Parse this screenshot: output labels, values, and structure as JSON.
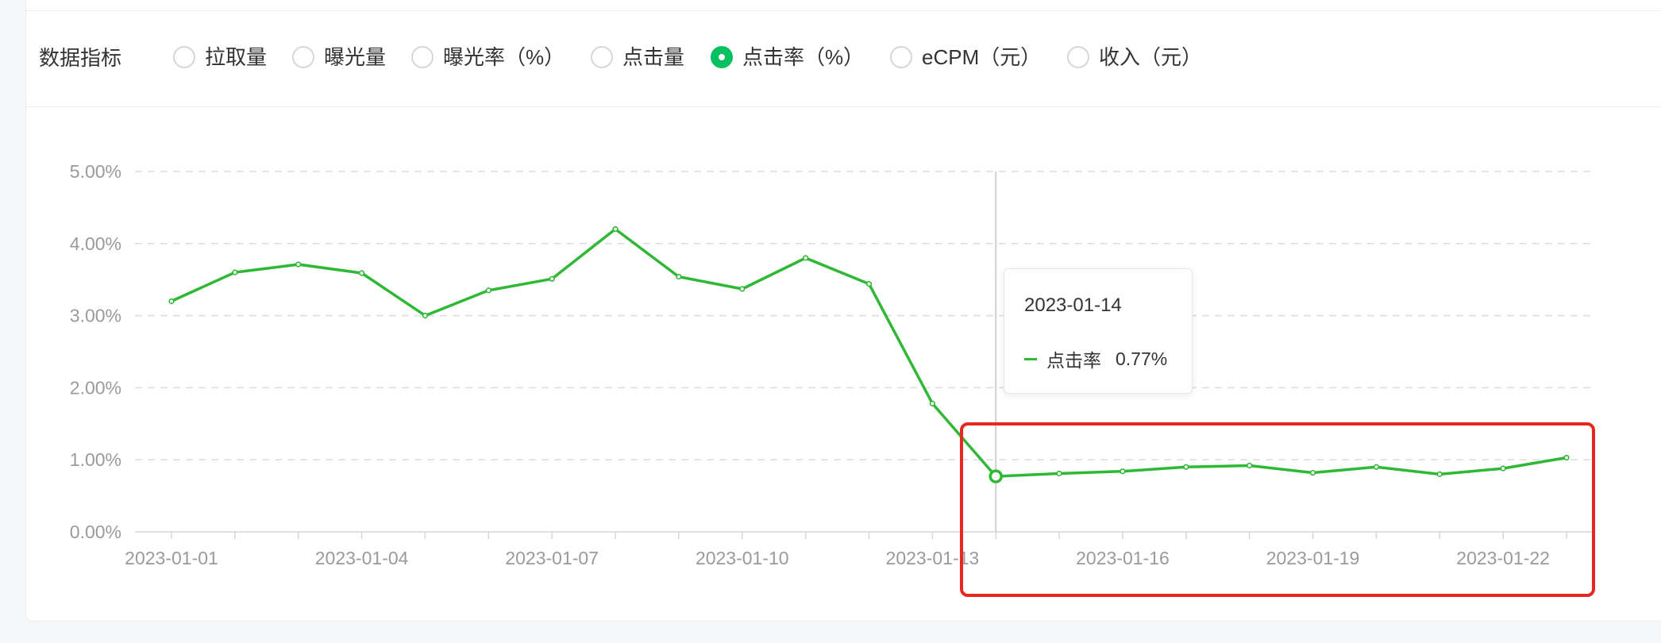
{
  "metrics": {
    "label": "数据指标",
    "options": [
      {
        "label": "拉取量",
        "checked": false
      },
      {
        "label": "曝光量",
        "checked": false
      },
      {
        "label": "曝光率（%）",
        "checked": false
      },
      {
        "label": "点击量",
        "checked": false
      },
      {
        "label": "点击率（%）",
        "checked": true
      },
      {
        "label": "eCPM（元）",
        "checked": false
      },
      {
        "label": "收入（元）",
        "checked": false
      }
    ]
  },
  "tooltip": {
    "date": "2023-01-14",
    "series_name": "点击率",
    "value": "0.77%"
  },
  "colors": {
    "accent": "#07c160",
    "line": "#2fb835",
    "highlight": "#e8281f"
  },
  "chart_data": {
    "type": "line",
    "x": [
      "2023-01-01",
      "2023-01-02",
      "2023-01-03",
      "2023-01-04",
      "2023-01-05",
      "2023-01-06",
      "2023-01-07",
      "2023-01-08",
      "2023-01-09",
      "2023-01-10",
      "2023-01-11",
      "2023-01-12",
      "2023-01-13",
      "2023-01-14",
      "2023-01-15",
      "2023-01-16",
      "2023-01-17",
      "2023-01-18",
      "2023-01-19",
      "2023-01-20",
      "2023-01-21",
      "2023-01-22",
      "2023-01-23"
    ],
    "x_tick_labels": [
      "2023-01-01",
      "2023-01-04",
      "2023-01-07",
      "2023-01-10",
      "2023-01-13",
      "2023-01-16",
      "2023-01-19",
      "2023-01-22"
    ],
    "series": [
      {
        "name": "点击率",
        "values": [
          3.2,
          3.6,
          3.71,
          3.59,
          3.0,
          3.35,
          3.51,
          4.2,
          3.54,
          3.37,
          3.8,
          3.44,
          1.78,
          0.77,
          0.81,
          0.84,
          0.9,
          0.92,
          0.82,
          0.9,
          0.8,
          0.88,
          1.03
        ]
      }
    ],
    "y_tick_labels": [
      "0.00%",
      "1.00%",
      "2.00%",
      "3.00%",
      "4.00%",
      "5.00%"
    ],
    "ylim": [
      0,
      5
    ],
    "grid": true,
    "highlight_index": 13
  }
}
